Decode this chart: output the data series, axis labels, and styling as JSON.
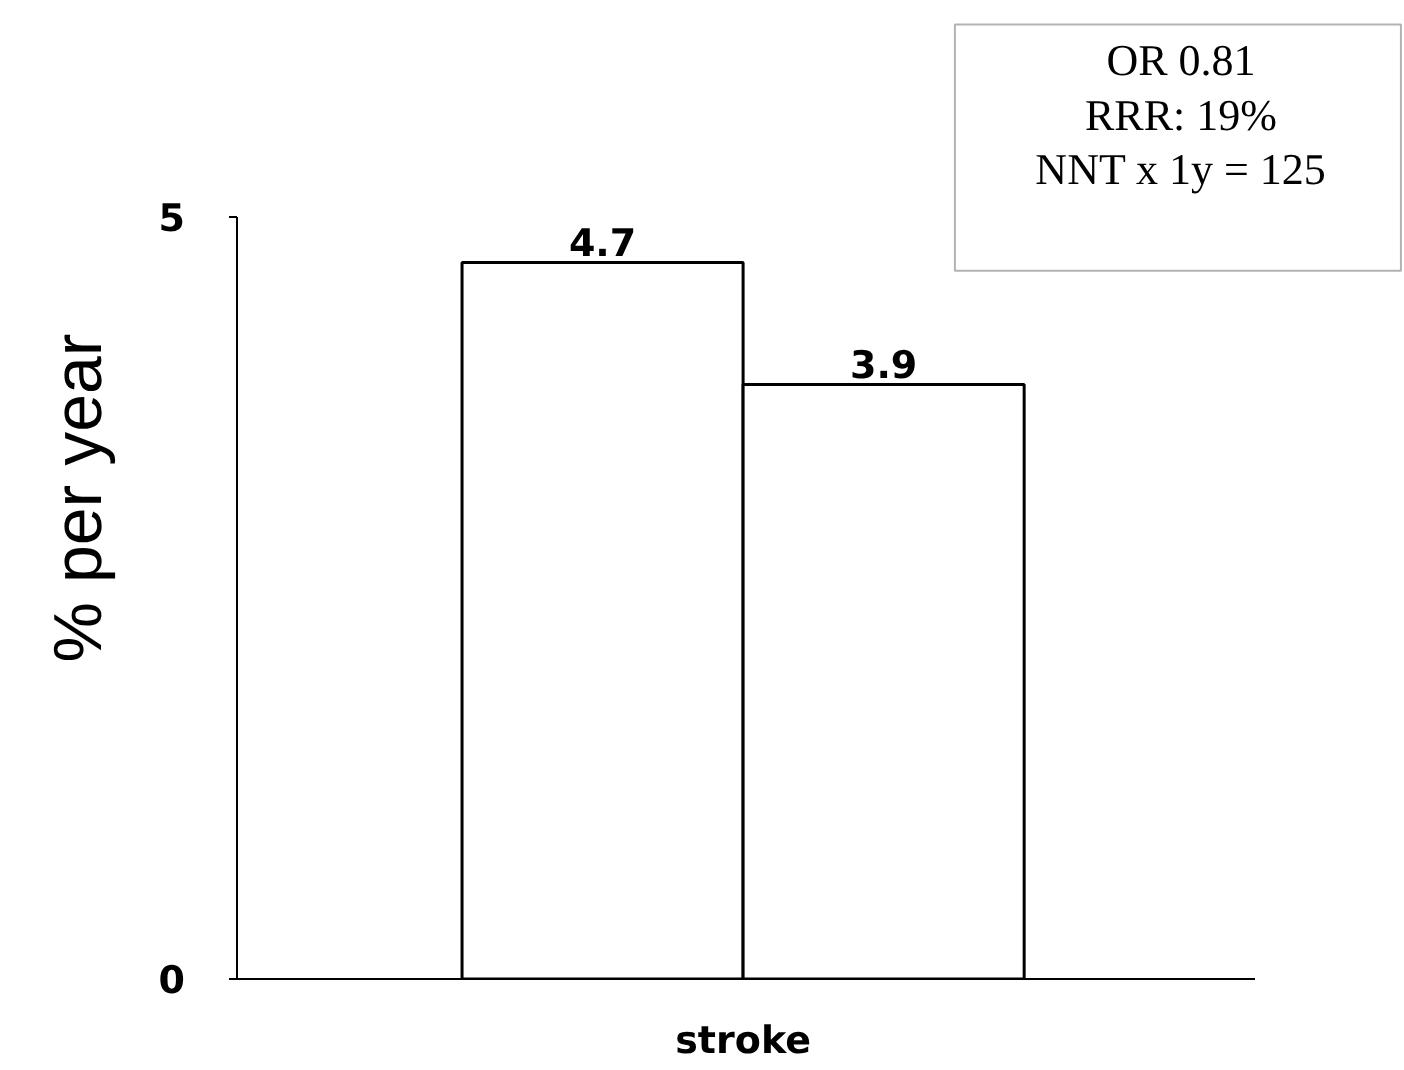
{
  "chart_data": {
    "type": "bar",
    "categories": [
      "stroke"
    ],
    "ylabel": "% per year",
    "ylim": [
      0,
      5
    ],
    "yticks": [
      0,
      5
    ],
    "data_labels": true,
    "series": [
      {
        "color": "#ffffff",
        "values": [
          4.7
        ]
      },
      {
        "color": "#ffffff",
        "values": [
          3.9
        ]
      }
    ],
    "annotations": [
      "OR 0.81",
      "RRR: 19%",
      "NNT x 1y = 125"
    ]
  }
}
